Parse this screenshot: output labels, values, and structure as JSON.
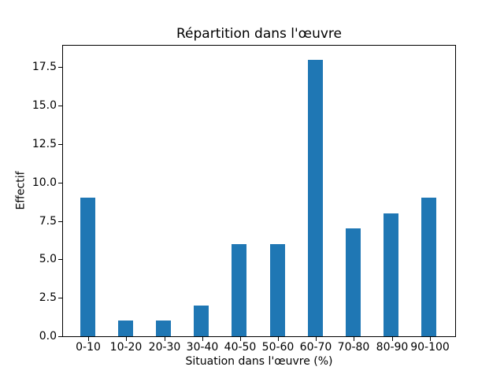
{
  "chart_data": {
    "type": "bar",
    "title": "Répartition dans l'œuvre",
    "xlabel": "Situation dans l'œuvre (%)",
    "ylabel": "Effectif",
    "categories": [
      "0-10",
      "10-20",
      "20-30",
      "30-40",
      "40-50",
      "50-60",
      "60-70",
      "70-80",
      "80-90",
      "90-100"
    ],
    "values": [
      9,
      1,
      1,
      2,
      6,
      6,
      18,
      7,
      8,
      9
    ],
    "ylim": [
      0,
      18.9
    ],
    "yticks": [
      0,
      2.5,
      5,
      7.5,
      10,
      12.5,
      15,
      17.5
    ],
    "ytick_labels": [
      "0.0",
      "2.5",
      "5.0",
      "7.5",
      "10.0",
      "12.5",
      "15.0",
      "17.5"
    ],
    "bar_color": "#1f77b4",
    "grid": false,
    "legend_position": "none"
  }
}
